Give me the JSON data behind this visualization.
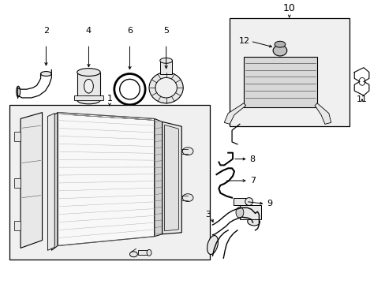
{
  "bg_color": "#ffffff",
  "line_color": "#000000",
  "dark_gray": "#555555",
  "mid_gray": "#888888",
  "light_gray": "#cccccc",
  "fill_gray": "#e8e8e8",
  "box_fill": "#f0f0f0",
  "label_fontsize": 8,
  "figsize": [
    4.89,
    3.6
  ],
  "dpi": 100
}
